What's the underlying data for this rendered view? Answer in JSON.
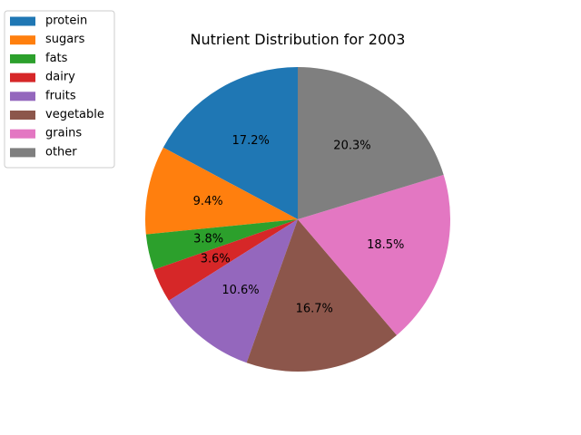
{
  "chart_data": {
    "type": "pie",
    "title": "Nutrient Distribution for 2003",
    "start_angle_deg": 90,
    "direction": "counterclockwise",
    "legend_position": "top-left",
    "slices": [
      {
        "label": "protein",
        "value": 17.2,
        "pct_label": "17.2%",
        "color": "#1f77b4"
      },
      {
        "label": "sugars",
        "value": 9.4,
        "pct_label": "9.4%",
        "color": "#ff7f0e"
      },
      {
        "label": "fats",
        "value": 3.8,
        "pct_label": "3.8%",
        "color": "#2ca02c"
      },
      {
        "label": "dairy",
        "value": 3.6,
        "pct_label": "3.6%",
        "color": "#d62728"
      },
      {
        "label": "fruits",
        "value": 10.6,
        "pct_label": "10.6%",
        "color": "#9467bd"
      },
      {
        "label": "vegetable",
        "value": 16.7,
        "pct_label": "16.7%",
        "color": "#8c564b"
      },
      {
        "label": "grains",
        "value": 18.5,
        "pct_label": "18.5%",
        "color": "#e377c2"
      },
      {
        "label": "other",
        "value": 20.3,
        "pct_label": "20.3%",
        "color": "#7f7f7f"
      }
    ]
  }
}
